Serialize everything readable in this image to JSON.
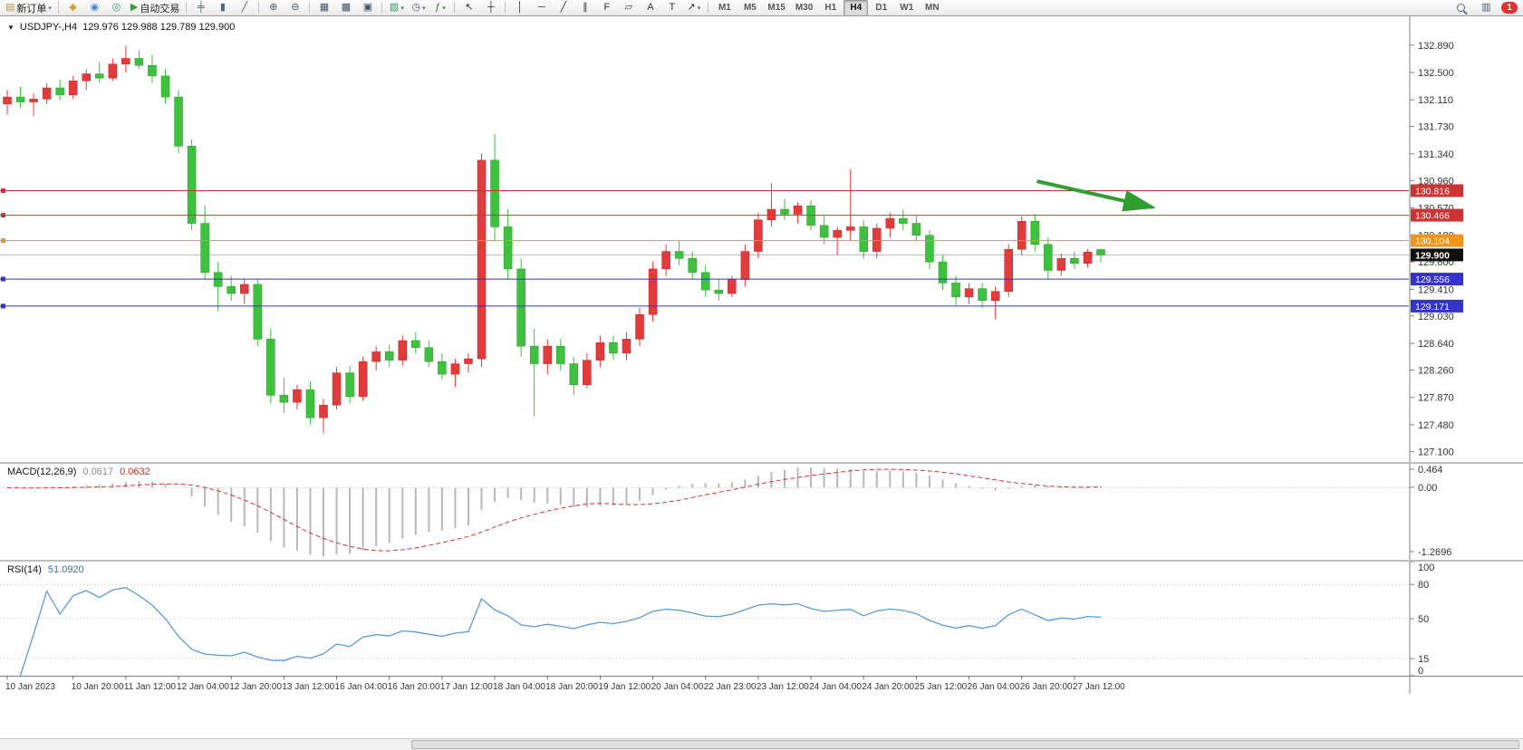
{
  "toolbar": {
    "groups": [
      {
        "name": "order-group",
        "items": [
          {
            "name": "new-order-button",
            "glyph": "▤",
            "glyph_color": "#b9963b",
            "label": "新订单",
            "dropdown": true
          }
        ]
      },
      {
        "name": "service-group",
        "items": [
          {
            "name": "mql5-button",
            "glyph": "◆",
            "glyph_color": "#d2a23c"
          },
          {
            "name": "market-depth-button",
            "glyph": "◉",
            "glyph_color": "#4a86c8"
          },
          {
            "name": "signals-button",
            "glyph": "◎",
            "glyph_color": "#3aa08a"
          },
          {
            "name": "autotrading-button",
            "glyph": "▶",
            "glyph_color": "#3a9d3a",
            "label": "自动交易"
          }
        ]
      },
      {
        "name": "chart-type-group",
        "items": [
          {
            "name": "ohlc-bars-button",
            "glyph": "╪",
            "glyph_color": "#556677"
          },
          {
            "name": "candlestick-button",
            "glyph": "▮",
            "glyph_color": "#556677"
          },
          {
            "name": "line-chart-button",
            "glyph": "╱",
            "glyph_color": "#556677"
          }
        ]
      },
      {
        "name": "zoom-group",
        "items": [
          {
            "name": "zoom-in-button",
            "glyph": "⊕",
            "glyph_color": "#44566a"
          },
          {
            "name": "zoom-out-button",
            "glyph": "⊖",
            "glyph_color": "#44566a"
          }
        ]
      },
      {
        "name": "window-group",
        "items": [
          {
            "name": "tile-windows-button",
            "glyph": "▦",
            "glyph_color": "#44566a"
          },
          {
            "name": "cascade-windows-button",
            "glyph": "▩",
            "glyph_color": "#44566a"
          },
          {
            "name": "arrange-icons-button",
            "glyph": "▣",
            "glyph_color": "#44566a"
          }
        ]
      },
      {
        "name": "chart-tools-group",
        "items": [
          {
            "name": "new-chart-button",
            "glyph": "▧",
            "glyph_color": "#3a9d5a",
            "dropdown": true
          },
          {
            "name": "profiles-button",
            "glyph": "◷",
            "glyph_color": "#44566a",
            "dropdown": true
          },
          {
            "name": "indicators-button",
            "glyph": "ƒ",
            "glyph_color": "#2a7d2a",
            "dropdown": true
          }
        ]
      },
      {
        "name": "cursor-group",
        "items": [
          {
            "name": "cursor-button",
            "glyph": "↖",
            "glyph_color": "#333333"
          },
          {
            "name": "crosshair-button",
            "glyph": "┼",
            "glyph_color": "#333333"
          }
        ]
      },
      {
        "name": "drawing-group",
        "items": [
          {
            "name": "vertical-line-button",
            "glyph": "│",
            "glyph_color": "#333333"
          },
          {
            "name": "horizontal-line-button",
            "glyph": "─",
            "glyph_color": "#333333"
          },
          {
            "name": "trendline-button",
            "glyph": "╱",
            "glyph_color": "#333333"
          },
          {
            "name": "channel-button",
            "glyph": "∥",
            "glyph_color": "#333333"
          },
          {
            "name": "fibonacci-button",
            "glyph": "F",
            "glyph_color": "#333333"
          },
          {
            "name": "shapes-button",
            "glyph": "▱",
            "glyph_color": "#333333"
          },
          {
            "name": "text-button",
            "glyph": "A",
            "glyph_color": "#333333"
          },
          {
            "name": "label-button",
            "glyph": "T",
            "glyph_color": "#333333"
          },
          {
            "name": "arrows-button",
            "glyph": "↗",
            "glyph_color": "#333333",
            "dropdown": true
          }
        ]
      }
    ],
    "timeframes": [
      "M1",
      "M5",
      "M15",
      "M30",
      "H1",
      "H4",
      "D1",
      "W1",
      "MN"
    ],
    "active_timeframe": "H4",
    "right_items": [
      {
        "name": "search-button",
        "type": "mag"
      },
      {
        "name": "charts-list-button",
        "glyph": "▥",
        "glyph_color": "#44566a"
      },
      {
        "name": "notification-badge",
        "type": "badge",
        "label": "1",
        "color": "#e03030"
      }
    ]
  },
  "chart_header": {
    "symbol_period": "USDJPY-,H4",
    "ohlc": "129.976 129.988 129.789 129.900"
  },
  "colors": {
    "bull": "#e33b3b",
    "bull_border": "#c02424",
    "bear": "#3ec13e",
    "bear_border": "#259a25",
    "macd_hist": "#b8b8b8",
    "macd_signal": "#d23333",
    "rsi_line": "#5b9bd5",
    "axis_text": "#333333",
    "bid_line": "#b9b9b9",
    "bid_badge": "#101010"
  },
  "chart_data": [
    {
      "type": "candlestick",
      "symbol": "USDJPY-",
      "timeframe": "H4",
      "y_range": [
        126.95,
        133.3
      ],
      "y_axis_ticks": [
        132.89,
        132.5,
        132.11,
        131.73,
        131.34,
        130.96,
        130.57,
        130.18,
        129.8,
        129.41,
        129.03,
        128.64,
        128.26,
        127.87,
        127.48,
        127.1
      ],
      "candles": [
        [
          132.05,
          132.25,
          131.9,
          132.15
        ],
        [
          132.15,
          132.3,
          132.0,
          132.08
        ],
        [
          132.08,
          132.2,
          131.88,
          132.12
        ],
        [
          132.12,
          132.35,
          132.05,
          132.28
        ],
        [
          132.28,
          132.4,
          132.1,
          132.18
        ],
        [
          132.18,
          132.45,
          132.12,
          132.38
        ],
        [
          132.38,
          132.55,
          132.25,
          132.48
        ],
        [
          132.48,
          132.65,
          132.35,
          132.42
        ],
        [
          132.42,
          132.7,
          132.38,
          132.62
        ],
        [
          132.62,
          132.88,
          132.5,
          132.7
        ],
        [
          132.7,
          132.82,
          132.55,
          132.6
        ],
        [
          132.6,
          132.75,
          132.35,
          132.45
        ],
        [
          132.45,
          132.55,
          132.05,
          132.15
        ],
        [
          132.15,
          132.25,
          131.35,
          131.45
        ],
        [
          131.45,
          131.55,
          130.25,
          130.35
        ],
        [
          130.35,
          130.6,
          129.55,
          129.65
        ],
        [
          129.65,
          129.8,
          129.1,
          129.45
        ],
        [
          129.45,
          129.6,
          129.25,
          129.35
        ],
        [
          129.35,
          129.55,
          129.2,
          129.48
        ],
        [
          129.48,
          129.55,
          128.6,
          128.7
        ],
        [
          128.7,
          128.85,
          127.78,
          127.9
        ],
        [
          127.9,
          128.15,
          127.65,
          127.8
        ],
        [
          127.8,
          128.05,
          127.7,
          127.98
        ],
        [
          127.98,
          128.1,
          127.48,
          127.58
        ],
        [
          127.58,
          127.85,
          127.36,
          127.76
        ],
        [
          127.76,
          128.3,
          127.7,
          128.22
        ],
        [
          128.22,
          128.32,
          127.78,
          127.88
        ],
        [
          127.88,
          128.45,
          127.82,
          128.38
        ],
        [
          128.38,
          128.6,
          128.25,
          128.52
        ],
        [
          128.52,
          128.62,
          128.3,
          128.4
        ],
        [
          128.4,
          128.75,
          128.32,
          128.68
        ],
        [
          128.68,
          128.8,
          128.5,
          128.58
        ],
        [
          128.58,
          128.68,
          128.3,
          128.38
        ],
        [
          128.38,
          128.5,
          128.12,
          128.2
        ],
        [
          128.2,
          128.42,
          128.02,
          128.35
        ],
        [
          128.35,
          128.5,
          128.22,
          128.42
        ],
        [
          128.42,
          131.35,
          128.3,
          131.25
        ],
        [
          131.25,
          131.62,
          130.1,
          130.3
        ],
        [
          130.3,
          130.55,
          129.55,
          129.7
        ],
        [
          129.7,
          129.85,
          128.45,
          128.6
        ],
        [
          128.6,
          128.85,
          127.6,
          128.35
        ],
        [
          128.35,
          128.7,
          128.2,
          128.6
        ],
        [
          128.6,
          128.7,
          128.25,
          128.35
        ],
        [
          128.35,
          128.45,
          127.9,
          128.05
        ],
        [
          128.05,
          128.5,
          128.0,
          128.4
        ],
        [
          128.4,
          128.75,
          128.3,
          128.65
        ],
        [
          128.65,
          128.75,
          128.4,
          128.5
        ],
        [
          128.5,
          128.8,
          128.4,
          128.7
        ],
        [
          128.7,
          129.15,
          128.6,
          129.05
        ],
        [
          129.05,
          129.8,
          128.95,
          129.7
        ],
        [
          129.7,
          130.05,
          129.6,
          129.95
        ],
        [
          129.95,
          130.1,
          129.75,
          129.85
        ],
        [
          129.85,
          129.95,
          129.55,
          129.65
        ],
        [
          129.65,
          129.75,
          129.3,
          129.4
        ],
        [
          129.4,
          129.55,
          129.25,
          129.35
        ],
        [
          129.35,
          129.6,
          129.3,
          129.55
        ],
        [
          129.55,
          130.05,
          129.45,
          129.95
        ],
        [
          129.95,
          130.5,
          129.85,
          130.4
        ],
        [
          130.4,
          130.92,
          130.3,
          130.55
        ],
        [
          130.55,
          130.7,
          130.4,
          130.48
        ],
        [
          130.48,
          130.65,
          130.35,
          130.6
        ],
        [
          130.6,
          130.68,
          130.25,
          130.32
        ],
        [
          130.32,
          130.45,
          130.05,
          130.15
        ],
        [
          130.15,
          130.3,
          129.9,
          130.25
        ],
        [
          130.25,
          131.12,
          130.1,
          130.3
        ],
        [
          130.3,
          130.4,
          129.85,
          129.95
        ],
        [
          129.95,
          130.35,
          129.85,
          130.28
        ],
        [
          130.28,
          130.5,
          130.15,
          130.42
        ],
        [
          130.42,
          130.55,
          130.25,
          130.35
        ],
        [
          130.35,
          130.45,
          130.1,
          130.18
        ],
        [
          130.18,
          130.25,
          129.7,
          129.8
        ],
        [
          129.8,
          129.9,
          129.4,
          129.5
        ],
        [
          129.5,
          129.6,
          129.18,
          129.3
        ],
        [
          129.3,
          129.5,
          129.2,
          129.42
        ],
        [
          129.42,
          129.5,
          129.15,
          129.25
        ],
        [
          129.25,
          129.45,
          128.98,
          129.38
        ],
        [
          129.38,
          130.05,
          129.3,
          129.98
        ],
        [
          129.98,
          130.45,
          129.9,
          130.38
        ],
        [
          130.38,
          130.48,
          129.95,
          130.05
        ],
        [
          130.05,
          130.15,
          129.55,
          129.68
        ],
        [
          129.68,
          129.92,
          129.6,
          129.85
        ],
        [
          129.85,
          129.95,
          129.7,
          129.78
        ],
        [
          129.78,
          129.98,
          129.72,
          129.94
        ],
        [
          129.976,
          129.988,
          129.789,
          129.9
        ]
      ],
      "time_labels": [
        [
          0,
          "10 Jan 2023"
        ],
        [
          5,
          "10 Jan 20:00"
        ],
        [
          9,
          "11 Jan 12:00"
        ],
        [
          13,
          "12 Jan 04:00"
        ],
        [
          17,
          "12 Jan 20:00"
        ],
        [
          21,
          "13 Jan 12:00"
        ],
        [
          25,
          "16 Jan 04:00"
        ],
        [
          29,
          "16 Jan 20:00"
        ],
        [
          33,
          "17 Jan 12:00"
        ],
        [
          37,
          "18 Jan 04:00"
        ],
        [
          41,
          "18 Jan 20:00"
        ],
        [
          45,
          "19 Jan 12:00"
        ],
        [
          49,
          "20 Jan 04:00"
        ],
        [
          53,
          "22 Jan 23:00"
        ],
        [
          57,
          "23 Jan 12:00"
        ],
        [
          61,
          "24 Jan 04:00"
        ],
        [
          65,
          "24 Jan 20:00"
        ],
        [
          69,
          "25 Jan 12:00"
        ],
        [
          73,
          "26 Jan 04:00"
        ],
        [
          77,
          "26 Jan 20:00"
        ],
        [
          81,
          "27 Jan 12:00"
        ]
      ],
      "levels": [
        {
          "price": 130.816,
          "label": "130.816",
          "color": "#cc3333"
        },
        {
          "price": 130.466,
          "label": "130.466",
          "color": "#cc3333"
        },
        {
          "price": 130.104,
          "label": "130.104",
          "color": "#f0941e"
        },
        {
          "price": 129.556,
          "label": "129.556",
          "color": "#3333cc"
        },
        {
          "price": 129.171,
          "label": "129.171",
          "color": "#3333cc"
        }
      ],
      "bid_price": 129.9,
      "bid_label": "129.900",
      "arrow": {
        "x1": 0.736,
        "p1": 130.95,
        "x2": 0.818,
        "p2": 130.58,
        "color": "#2f9e2f"
      }
    },
    {
      "type": "macd",
      "label": "MACD(12,26,9)",
      "value_main": "0.0617",
      "value_signal": "0.0632",
      "params": {
        "fast": 12,
        "slow": 26,
        "signal": 9
      },
      "y_ticks": [
        "0.464",
        "0.00",
        "-1.2696"
      ]
    },
    {
      "type": "rsi",
      "label": "RSI(14)",
      "value": "51.0920",
      "period": 14,
      "levels": [
        80,
        50,
        15
      ],
      "y_ticks": [
        100,
        80,
        50,
        15,
        0
      ]
    }
  ]
}
